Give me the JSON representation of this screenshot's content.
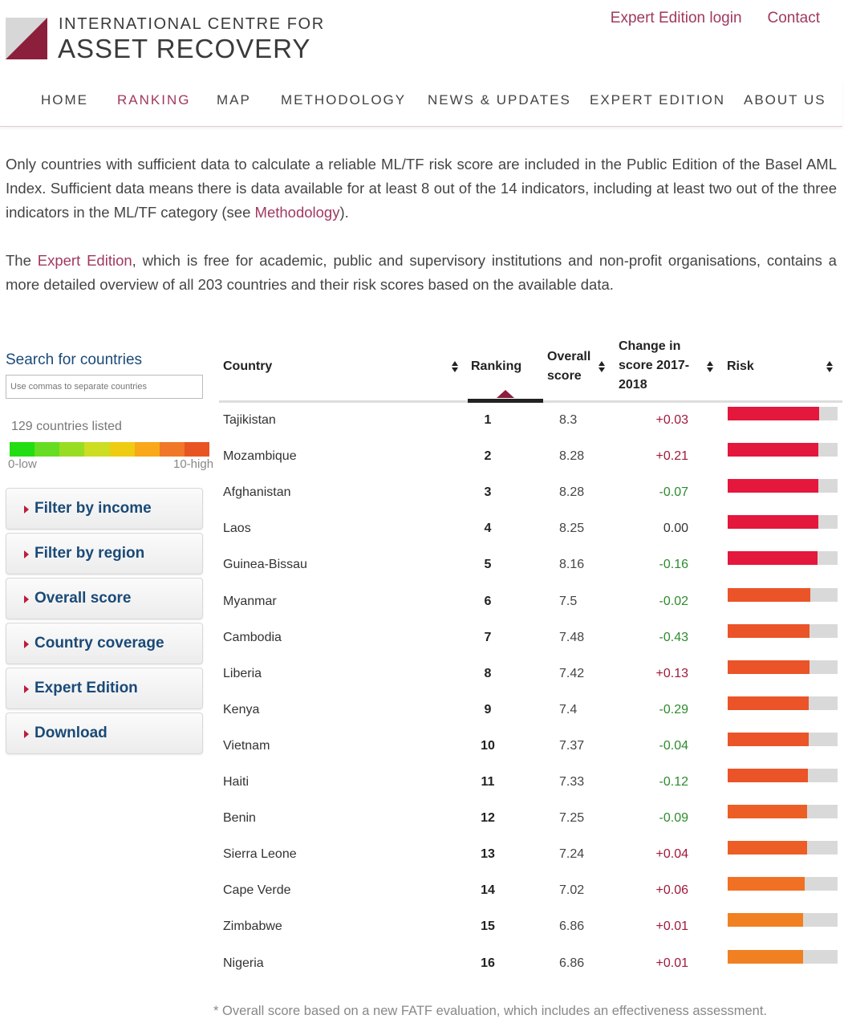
{
  "header": {
    "logo_line1": "INTERNATIONAL CENTRE FOR",
    "logo_line2": "ASSET RECOVERY",
    "links": [
      "Expert Edition login",
      "Contact"
    ]
  },
  "nav": {
    "items": [
      "HOME",
      "RANKING",
      "MAP",
      "METHODOLOGY",
      "NEWS & UPDATES",
      "EXPERT EDITION",
      "ABOUT US"
    ],
    "active": "RANKING"
  },
  "intro": {
    "p1_a": "Only countries with sufficient data to calculate a reliable ML/TF risk score are included in the Public Edition of the Basel AML Index. Sufficient data means there is data available for at least 8 out of the 14 indicators, including at least two out of the three indicators in the ML/TF category (see ",
    "p1_link": "Methodology",
    "p1_b": ").",
    "p2_a": "The ",
    "p2_link": "Expert Edition",
    "p2_b": ", which is free for academic, public and supervisory institutions and non-profit organisations, contains a more detailed overview of all 203 countries and their risk scores based on the available data."
  },
  "sidebar": {
    "search_title": "Search for countries",
    "search_placeholder": "Use commas to separate countries",
    "count_text": "129 countries listed",
    "scale_low": "0-low",
    "scale_high": "10-high",
    "scale_colors": [
      "#22dd11",
      "#66dd22",
      "#99dd22",
      "#ccdd22",
      "#eecc11",
      "#f8a818",
      "#f07828",
      "#e85522"
    ],
    "filters": [
      "Filter by income",
      "Filter by region",
      "Overall score",
      "Country coverage",
      "Expert Edition",
      "Download"
    ]
  },
  "table": {
    "headers": {
      "country": "Country",
      "ranking": "Ranking",
      "score_l1": "Overall",
      "score_l2": "score",
      "change_l1": "Change in",
      "change_l2": "score 2017-",
      "change_l3": "2018",
      "risk": "Risk"
    },
    "rows": [
      {
        "country": "Tajikistan",
        "rank": "1",
        "score": "8.3",
        "change": "+0.03",
        "risk": 8.3,
        "color": "#e4173c"
      },
      {
        "country": "Mozambique",
        "rank": "2",
        "score": "8.28",
        "change": "+0.21",
        "risk": 8.28,
        "color": "#e4173c"
      },
      {
        "country": "Afghanistan",
        "rank": "3",
        "score": "8.28",
        "change": "-0.07",
        "risk": 8.28,
        "color": "#e4173c"
      },
      {
        "country": "Laos",
        "rank": "4",
        "score": "8.25",
        "change": "0.00",
        "risk": 8.25,
        "color": "#e4173c"
      },
      {
        "country": "Guinea-Bissau",
        "rank": "5",
        "score": "8.16",
        "change": "-0.16",
        "risk": 8.16,
        "color": "#e4173c"
      },
      {
        "country": "Myanmar",
        "rank": "6",
        "score": "7.5",
        "change": "-0.02",
        "risk": 7.5,
        "color": "#ea5428"
      },
      {
        "country": "Cambodia",
        "rank": "7",
        "score": "7.48",
        "change": "-0.43",
        "risk": 7.48,
        "color": "#ea5428"
      },
      {
        "country": "Liberia",
        "rank": "8",
        "score": "7.42",
        "change": "+0.13",
        "risk": 7.42,
        "color": "#ea5428"
      },
      {
        "country": "Kenya",
        "rank": "9",
        "score": "7.4",
        "change": "-0.29",
        "risk": 7.4,
        "color": "#ea5428"
      },
      {
        "country": "Vietnam",
        "rank": "10",
        "score": "7.37",
        "change": "-0.04",
        "risk": 7.37,
        "color": "#ea5428"
      },
      {
        "country": "Haiti",
        "rank": "11",
        "score": "7.33",
        "change": "-0.12",
        "risk": 7.33,
        "color": "#ea5428"
      },
      {
        "country": "Benin",
        "rank": "12",
        "score": "7.25",
        "change": "-0.09",
        "risk": 7.25,
        "color": "#ec5e26"
      },
      {
        "country": "Sierra Leone",
        "rank": "13",
        "score": "7.24",
        "change": "+0.04",
        "risk": 7.24,
        "color": "#ec5e26"
      },
      {
        "country": "Cape Verde",
        "rank": "14",
        "score": "7.02",
        "change": "+0.06",
        "risk": 7.02,
        "color": "#f07024"
      },
      {
        "country": "Zimbabwe",
        "rank": "15",
        "score": "6.86",
        "change": "+0.01",
        "risk": 6.86,
        "color": "#f08022"
      },
      {
        "country": "Nigeria",
        "rank": "16",
        "score": "6.86",
        "change": "+0.01",
        "risk": 6.86,
        "color": "#f08022"
      }
    ]
  },
  "footnote": "* Overall score based on a new FATF evaluation, which includes an effectiveness assessment."
}
